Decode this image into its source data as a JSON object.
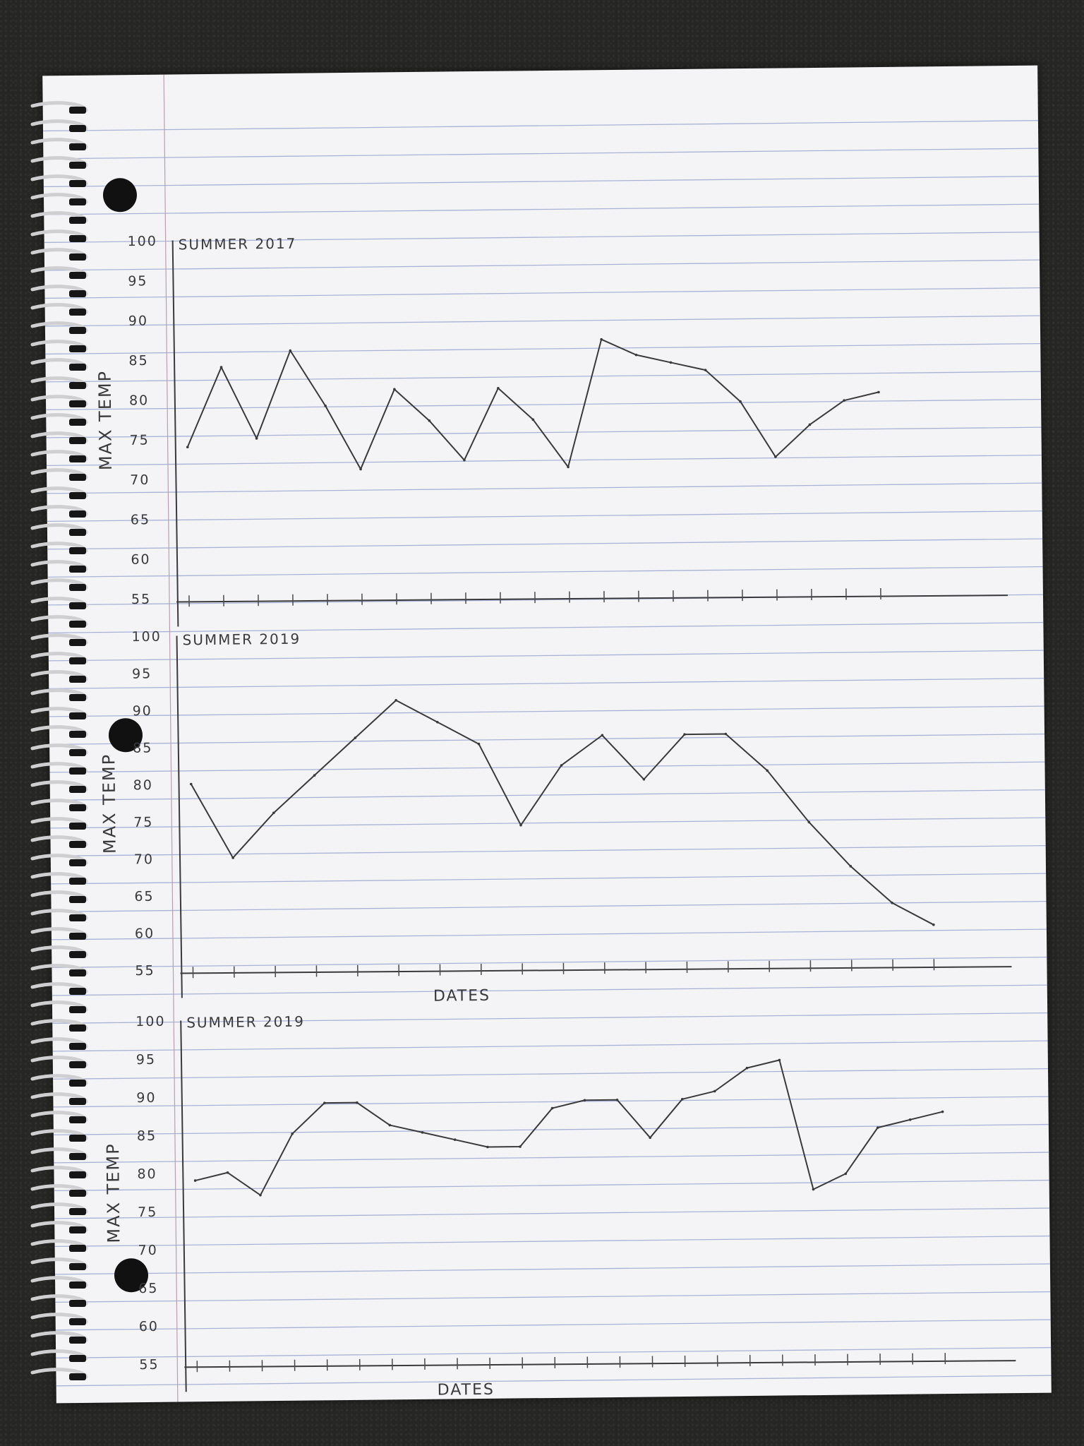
{
  "chart_data": [
    {
      "type": "line",
      "title": "SUMMER 2017",
      "ylabel": "MAX TEMP",
      "xlabel": "",
      "yticks": [
        "100",
        "95",
        "90",
        "85",
        "80",
        "75",
        "70",
        "65",
        "60",
        "55"
      ],
      "ylim": [
        55,
        100
      ],
      "series": [
        {
          "values": [
            74,
            84,
            75,
            86,
            79,
            71,
            81,
            77,
            72,
            81,
            77,
            71,
            87,
            85,
            84,
            83,
            79,
            72,
            76,
            79,
            80
          ]
        }
      ]
    },
    {
      "type": "line",
      "title": "SUMMER 2019",
      "ylabel": "MAX TEMP",
      "xlabel": "DATES",
      "yticks": [
        "100",
        "95",
        "90",
        "85",
        "80",
        "75",
        "70",
        "65",
        "60",
        "55"
      ],
      "ylim": [
        55,
        100
      ],
      "series": [
        {
          "values": [
            80,
            70,
            76,
            81,
            86,
            91,
            88,
            85,
            74,
            82,
            86,
            80,
            86,
            86,
            81,
            74,
            68,
            63,
            60
          ]
        }
      ]
    },
    {
      "type": "line",
      "title": "SUMMER 2019",
      "ylabel": "MAX TEMP",
      "xlabel": "DATES",
      "yticks": [
        "100",
        "95",
        "90",
        "85",
        "80",
        "75",
        "70",
        "65",
        "60",
        "55"
      ],
      "ylim": [
        55,
        100
      ],
      "series": [
        {
          "values": [
            79,
            80,
            77,
            85,
            89,
            89,
            86,
            85,
            84,
            83,
            83,
            88,
            89,
            89,
            84,
            89,
            90,
            93,
            94,
            77,
            79,
            85,
            86,
            87
          ]
        }
      ]
    }
  ]
}
